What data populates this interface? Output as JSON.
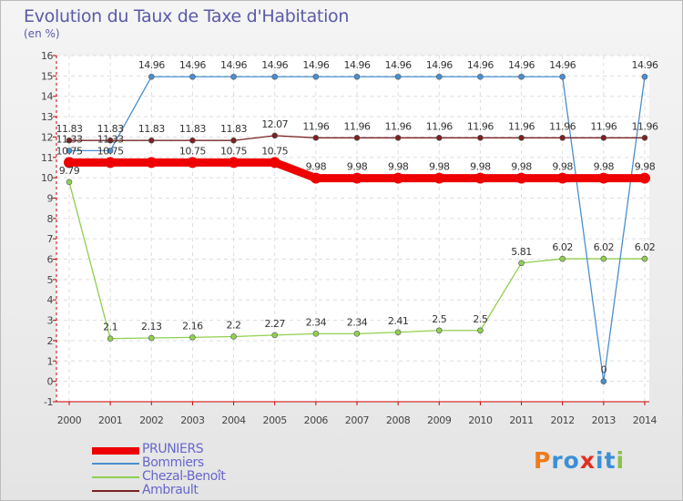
{
  "title": "Evolution du Taux de Taxe d'Habitation",
  "subtitle": "(en %)",
  "logo": {
    "letters": [
      "P",
      "r",
      "o",
      "x",
      "i",
      "t",
      "i"
    ],
    "colors": [
      "#f07a1a",
      "#3c8fd6",
      "#3c8fd6",
      "#e03020",
      "#3c8fd6",
      "#3c8fd6",
      "#8ac24a"
    ]
  },
  "chart_data": {
    "type": "line",
    "x": [
      "2000",
      "2001",
      "2002",
      "2003",
      "2004",
      "2005",
      "2006",
      "2007",
      "2008",
      "2009",
      "2010",
      "2011",
      "2012",
      "2013",
      "2014"
    ],
    "ylim": [
      -1,
      16
    ],
    "yticks": [
      "-1",
      "0",
      "1",
      "2",
      "3",
      "4",
      "5",
      "6",
      "7",
      "8",
      "9",
      "10",
      "11",
      "12",
      "13",
      "14",
      "15",
      "16"
    ],
    "grid": true,
    "legend_position": "bottom-left",
    "series": [
      {
        "name": "PRUNIERS",
        "color": "#ee0000",
        "values": [
          10.75,
          10.75,
          10.75,
          10.75,
          10.75,
          10.75,
          9.98,
          9.98,
          9.98,
          9.98,
          9.98,
          9.98,
          9.98,
          9.98,
          9.98
        ],
        "labels": [
          "10.75",
          "10.75",
          "",
          "10.75",
          "10.75",
          "10.75",
          "9.98",
          "9.98",
          "9.98",
          "9.98",
          "9.98",
          "9.98",
          "9.98",
          "9.98",
          "9.98"
        ]
      },
      {
        "name": "Bommiers",
        "color": "#4a8fd0",
        "values": [
          11.33,
          11.33,
          14.96,
          14.96,
          14.96,
          14.96,
          14.96,
          14.96,
          14.96,
          14.96,
          14.96,
          14.96,
          14.96,
          0,
          14.96
        ],
        "labels": [
          "11.33",
          "11.33",
          "14.96",
          "14.96",
          "14.96",
          "14.96",
          "14.96",
          "14.96",
          "14.96",
          "14.96",
          "14.96",
          "14.96",
          "14.96",
          "0",
          "14.96"
        ]
      },
      {
        "name": "Chezal-Benoît",
        "color": "#90d050",
        "values": [
          9.79,
          2.1,
          2.13,
          2.16,
          2.2,
          2.27,
          2.34,
          2.34,
          2.41,
          2.5,
          2.5,
          5.81,
          6.02,
          6.02,
          6.02
        ],
        "labels": [
          "9.79",
          "2.1",
          "2.13",
          "2.16",
          "2.2",
          "2.27",
          "2.34",
          "2.34",
          "2.41",
          "2.5",
          "2.5",
          "5.81",
          "6.02",
          "6.02",
          "6.02"
        ]
      },
      {
        "name": "Ambrault",
        "color": "#7a2222",
        "values": [
          11.83,
          11.83,
          11.83,
          11.83,
          11.83,
          12.07,
          11.96,
          11.96,
          11.96,
          11.96,
          11.96,
          11.96,
          11.96,
          11.96,
          11.96
        ],
        "labels": [
          "11.83",
          "11.83",
          "11.83",
          "11.83",
          "11.83",
          "12.07",
          "11.96",
          "11.96",
          "11.96",
          "11.96",
          "11.96",
          "11.96",
          "11.96",
          "11.96",
          "11.96"
        ]
      }
    ]
  }
}
